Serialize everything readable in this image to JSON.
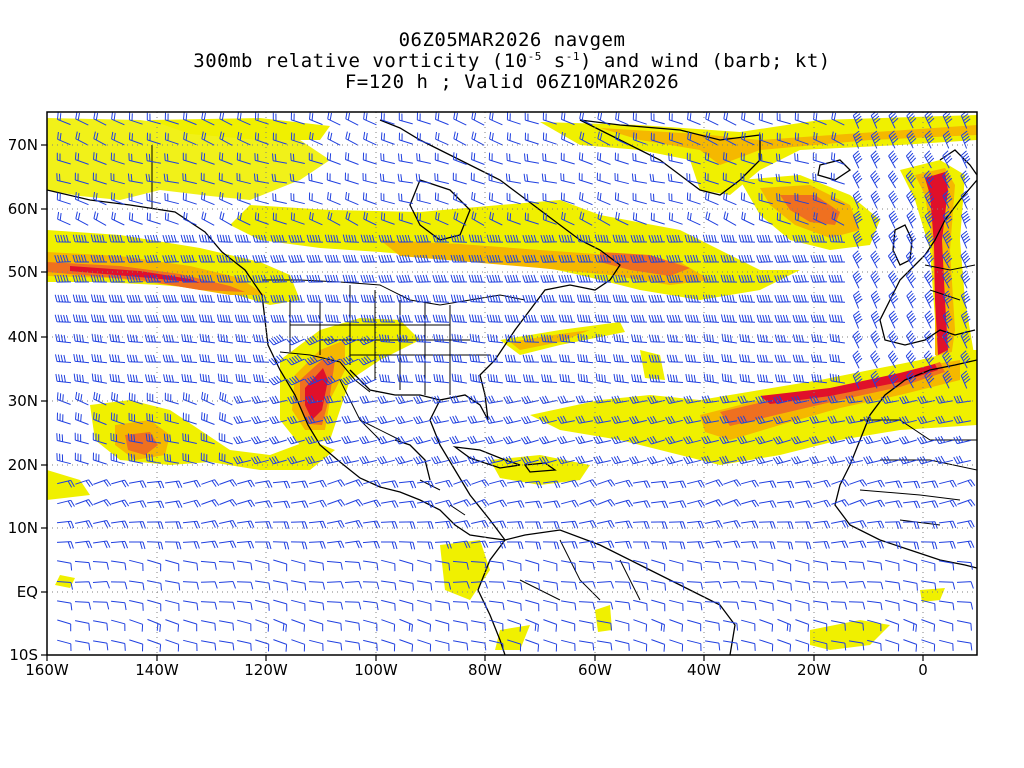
{
  "titles": {
    "line1": "06Z05MAR2026 navgem",
    "line2_pre": "300mb relative vorticity (10",
    "line2_exp1": "-5",
    "line2_mid": " s",
    "line2_exp2": "-1",
    "line2_post": ") and wind (barb; kt)",
    "line3": "F=120 h ; Valid 06Z10MAR2026"
  },
  "axes": {
    "lat_labels": [
      "70N",
      "60N",
      "50N",
      "40N",
      "30N",
      "20N",
      "10N",
      "EQ",
      "10S"
    ],
    "lon_labels": [
      "160W",
      "140W",
      "120W",
      "100W",
      "80W",
      "60W",
      "40W",
      "20W",
      "0"
    ]
  },
  "colors": {
    "vort_low": "#f0f000",
    "vort_mid": "#f5b800",
    "vort_high": "#ef7020",
    "vort_peak": "#e0102a",
    "barb": "#2040e0",
    "coast": "#000000",
    "grid": "#808080"
  }
}
